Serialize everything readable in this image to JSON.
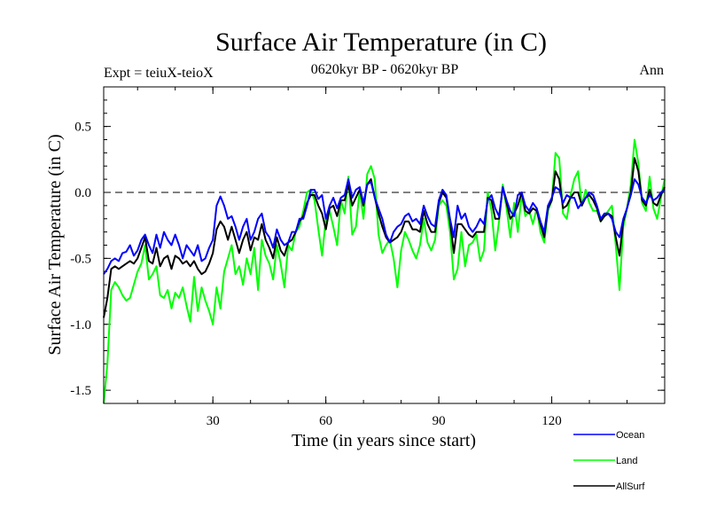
{
  "chart_data": {
    "type": "line",
    "title": "Surface Air Temperature (in C)",
    "subtitle": "0620kyr BP - 0620kyr BP",
    "left_label": "Expt = teiuX-teioX",
    "right_label": "Ann",
    "xlabel": "Time (in years since start)",
    "ylabel": "Surface Air Temperature (in C)",
    "xlim": [
      1,
      150
    ],
    "ylim": [
      -1.6,
      0.8
    ],
    "xticks": [
      30,
      60,
      90,
      120
    ],
    "xtick_labels": [
      "30",
      "60",
      "90",
      "120"
    ],
    "yticks": [
      -1.5,
      -1.0,
      -0.5,
      0.0,
      0.5
    ],
    "ytick_labels": [
      "-1.5",
      "-1.0",
      "-0.5",
      "0.0",
      "0.5"
    ],
    "reference_line": 0.0,
    "colors": {
      "ocean": "#0000ff",
      "land": "#00ff00",
      "allsurf": "#000000"
    },
    "series": [
      {
        "name": "Ocean",
        "key": "ocean",
        "values": [
          -0.62,
          -0.58,
          -0.52,
          -0.5,
          -0.52,
          -0.46,
          -0.45,
          -0.4,
          -0.48,
          -0.44,
          -0.36,
          -0.32,
          -0.4,
          -0.46,
          -0.32,
          -0.42,
          -0.3,
          -0.36,
          -0.4,
          -0.32,
          -0.4,
          -0.5,
          -0.4,
          -0.44,
          -0.48,
          -0.4,
          -0.52,
          -0.5,
          -0.42,
          -0.36,
          -0.1,
          -0.03,
          -0.1,
          -0.2,
          -0.18,
          -0.26,
          -0.36,
          -0.26,
          -0.2,
          -0.36,
          -0.3,
          -0.2,
          -0.16,
          -0.3,
          -0.34,
          -0.42,
          -0.28,
          -0.36,
          -0.4,
          -0.38,
          -0.3,
          -0.3,
          -0.2,
          -0.2,
          -0.1,
          0.02,
          0.02,
          -0.05,
          -0.02,
          -0.2,
          -0.1,
          -0.04,
          -0.12,
          -0.04,
          -0.02,
          0.1,
          -0.04,
          0.02,
          0.04,
          -0.08,
          0.06,
          0.08,
          -0.04,
          -0.12,
          -0.2,
          -0.32,
          -0.38,
          -0.3,
          -0.26,
          -0.24,
          -0.18,
          -0.16,
          -0.22,
          -0.2,
          -0.24,
          -0.1,
          -0.18,
          -0.24,
          -0.26,
          -0.06,
          0.02,
          -0.02,
          -0.2,
          -0.34,
          -0.1,
          -0.2,
          -0.16,
          -0.26,
          -0.3,
          -0.26,
          -0.2,
          -0.24,
          -0.06,
          -0.02,
          -0.12,
          -0.18,
          0.04,
          -0.06,
          -0.14,
          -0.18,
          -0.02,
          0.0,
          -0.1,
          -0.14,
          -0.08,
          -0.12,
          -0.22,
          -0.3,
          -0.1,
          -0.04,
          0.04,
          0.02,
          -0.08,
          -0.02,
          -0.04,
          -0.04,
          -0.12,
          -0.08,
          -0.04,
          0.0,
          -0.02,
          -0.1,
          -0.2,
          -0.16,
          -0.16,
          -0.2,
          -0.3,
          -0.34,
          -0.2,
          -0.12,
          -0.02,
          0.1,
          0.06,
          -0.04,
          -0.08,
          -0.02,
          -0.06,
          -0.04,
          0.0,
          0.02
        ]
      },
      {
        "name": "Land",
        "key": "land",
        "values": [
          -1.6,
          -1.3,
          -0.74,
          -0.68,
          -0.72,
          -0.78,
          -0.82,
          -0.8,
          -0.7,
          -0.6,
          -0.54,
          -0.4,
          -0.66,
          -0.62,
          -0.56,
          -0.78,
          -0.8,
          -0.74,
          -0.88,
          -0.76,
          -0.8,
          -0.72,
          -0.86,
          -0.98,
          -0.64,
          -0.9,
          -0.72,
          -0.82,
          -0.9,
          -1.0,
          -0.72,
          -0.88,
          -0.6,
          -0.5,
          -0.4,
          -0.62,
          -0.56,
          -0.7,
          -0.5,
          -0.62,
          -0.42,
          -0.74,
          -0.36,
          -0.48,
          -0.54,
          -0.66,
          -0.4,
          -0.54,
          -0.72,
          -0.4,
          -0.44,
          -0.3,
          -0.26,
          -0.14,
          0.0,
          0.02,
          -0.06,
          -0.28,
          -0.48,
          -0.2,
          -0.14,
          -0.26,
          -0.4,
          -0.06,
          -0.16,
          0.12,
          -0.32,
          -0.26,
          0.02,
          -0.2,
          0.14,
          0.2,
          0.1,
          -0.32,
          -0.46,
          -0.4,
          -0.36,
          -0.5,
          -0.72,
          -0.44,
          -0.3,
          -0.36,
          -0.44,
          -0.5,
          -0.4,
          -0.2,
          -0.38,
          -0.44,
          -0.36,
          -0.1,
          -0.06,
          -0.1,
          -0.3,
          -0.66,
          -0.58,
          -0.3,
          -0.56,
          -0.4,
          -0.38,
          -0.32,
          -0.52,
          -0.44,
          0.0,
          -0.14,
          -0.44,
          -0.22,
          0.06,
          -0.12,
          -0.34,
          -0.08,
          -0.3,
          -0.02,
          -0.18,
          -0.14,
          -0.24,
          -0.12,
          -0.3,
          -0.38,
          -0.14,
          -0.06,
          0.3,
          0.26,
          -0.16,
          -0.2,
          -0.02,
          0.1,
          0.16,
          -0.1,
          0.02,
          -0.08,
          -0.14,
          -0.14,
          -0.22,
          -0.18,
          -0.14,
          -0.1,
          -0.4,
          -0.74,
          -0.26,
          -0.12,
          0.06,
          0.4,
          0.22,
          -0.08,
          -0.14,
          0.12,
          -0.12,
          -0.2,
          -0.04,
          0.1
        ]
      },
      {
        "name": "AllSurf",
        "key": "allsurf",
        "values": [
          -0.95,
          -0.8,
          -0.58,
          -0.56,
          -0.58,
          -0.56,
          -0.54,
          -0.52,
          -0.54,
          -0.5,
          -0.42,
          -0.34,
          -0.52,
          -0.54,
          -0.42,
          -0.56,
          -0.5,
          -0.48,
          -0.58,
          -0.48,
          -0.5,
          -0.54,
          -0.52,
          -0.56,
          -0.52,
          -0.58,
          -0.62,
          -0.6,
          -0.54,
          -0.46,
          -0.28,
          -0.22,
          -0.26,
          -0.36,
          -0.26,
          -0.36,
          -0.46,
          -0.36,
          -0.3,
          -0.44,
          -0.34,
          -0.36,
          -0.24,
          -0.36,
          -0.42,
          -0.5,
          -0.34,
          -0.44,
          -0.48,
          -0.38,
          -0.36,
          -0.3,
          -0.22,
          -0.18,
          -0.08,
          -0.02,
          -0.02,
          -0.1,
          -0.16,
          -0.28,
          -0.12,
          -0.1,
          -0.18,
          -0.06,
          -0.06,
          0.06,
          -0.1,
          -0.04,
          0.02,
          -0.1,
          0.06,
          0.1,
          -0.04,
          -0.16,
          -0.26,
          -0.34,
          -0.38,
          -0.36,
          -0.34,
          -0.3,
          -0.22,
          -0.22,
          -0.28,
          -0.28,
          -0.3,
          -0.14,
          -0.24,
          -0.3,
          -0.3,
          -0.08,
          0.0,
          -0.04,
          -0.22,
          -0.46,
          -0.24,
          -0.24,
          -0.28,
          -0.32,
          -0.34,
          -0.3,
          -0.3,
          -0.3,
          -0.04,
          -0.06,
          -0.2,
          -0.2,
          0.04,
          -0.08,
          -0.2,
          -0.16,
          -0.1,
          0.0,
          -0.14,
          -0.16,
          -0.12,
          -0.14,
          -0.24,
          -0.34,
          -0.12,
          -0.06,
          0.16,
          0.1,
          -0.12,
          -0.1,
          -0.04,
          0.0,
          0.0,
          -0.1,
          -0.04,
          -0.02,
          -0.06,
          -0.12,
          -0.22,
          -0.18,
          -0.16,
          -0.18,
          -0.34,
          -0.48,
          -0.22,
          -0.12,
          0.0,
          0.26,
          0.16,
          -0.06,
          -0.1,
          0.02,
          -0.08,
          -0.1,
          -0.02,
          0.04
        ]
      }
    ]
  },
  "legend": {
    "ocean": "Ocean",
    "land": "Land",
    "allsurf": "AllSurf"
  }
}
